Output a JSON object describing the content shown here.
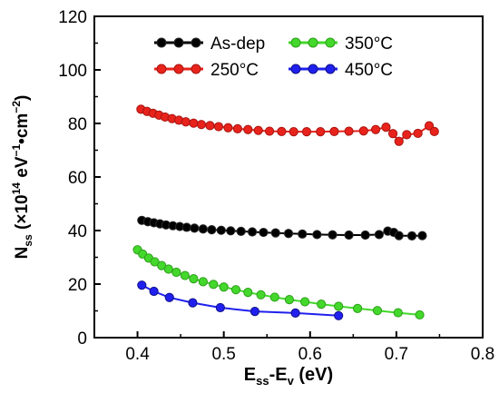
{
  "chart_data": {
    "type": "line",
    "xlabel": {
      "main": "E",
      "sub1": "ss",
      "mid": "-E",
      "sub2": "v",
      "tail": " (eV)"
    },
    "ylabel": {
      "main": "N",
      "sub1": "ss",
      "open": " (×10",
      "sup1": "14",
      "unit1": " eV",
      "sup2": "−1",
      "unit2": "•cm",
      "sup3": "−2",
      "close": ")"
    },
    "xlim": [
      0.35,
      0.8
    ],
    "ylim": [
      0,
      120
    ],
    "xticks": [
      "0.4",
      "0.5",
      "0.6",
      "0.7",
      "0.8"
    ],
    "xtick_values": [
      0.4,
      0.5,
      0.6,
      0.7,
      0.8
    ],
    "yticks": [
      "0",
      "20",
      "40",
      "60",
      "80",
      "100",
      "120"
    ],
    "ytick_values": [
      0,
      20,
      40,
      60,
      80,
      100,
      120
    ],
    "legend": "top, inside plot, two columns",
    "series": [
      {
        "name": "As-dep",
        "color": "#000000",
        "x": [
          0.405,
          0.412,
          0.419,
          0.426,
          0.433,
          0.441,
          0.449,
          0.457,
          0.466,
          0.476,
          0.486,
          0.497,
          0.508,
          0.52,
          0.533,
          0.546,
          0.56,
          0.575,
          0.591,
          0.608,
          0.626,
          0.645,
          0.664,
          0.68,
          0.69,
          0.697,
          0.703,
          0.718,
          0.73
        ],
        "y": [
          43.8,
          43.3,
          42.9,
          42.5,
          42.1,
          41.8,
          41.5,
          41.2,
          40.9,
          40.6,
          40.3,
          40.1,
          39.9,
          39.7,
          39.5,
          39.3,
          39.1,
          38.9,
          38.7,
          38.5,
          38.4,
          38.3,
          38.3,
          38.5,
          39.8,
          39.3,
          38.1,
          38.0,
          38.1
        ]
      },
      {
        "name": "250°C",
        "color": "#e8231c",
        "x": [
          0.404,
          0.411,
          0.418,
          0.425,
          0.432,
          0.44,
          0.448,
          0.456,
          0.465,
          0.474,
          0.484,
          0.494,
          0.505,
          0.516,
          0.528,
          0.54,
          0.553,
          0.567,
          0.581,
          0.596,
          0.612,
          0.628,
          0.645,
          0.662,
          0.676,
          0.688,
          0.696,
          0.703,
          0.712,
          0.725,
          0.738,
          0.744
        ],
        "y": [
          85.3,
          84.5,
          83.8,
          83.1,
          82.4,
          81.8,
          81.2,
          80.6,
          80.1,
          79.6,
          79.2,
          78.8,
          78.4,
          78.0,
          77.7,
          77.4,
          77.1,
          77.0,
          76.9,
          76.9,
          76.9,
          77.0,
          77.1,
          77.2,
          77.7,
          78.6,
          76.2,
          73.3,
          75.8,
          76.3,
          79.1,
          77.0
        ]
      },
      {
        "name": "350°C",
        "color": "#43d82b",
        "x": [
          0.4,
          0.406,
          0.413,
          0.42,
          0.428,
          0.436,
          0.445,
          0.455,
          0.465,
          0.476,
          0.488,
          0.5,
          0.514,
          0.528,
          0.543,
          0.559,
          0.576,
          0.594,
          0.613,
          0.633,
          0.655,
          0.678,
          0.702,
          0.727
        ],
        "y": [
          32.8,
          31.2,
          29.7,
          28.3,
          26.9,
          25.6,
          24.4,
          23.2,
          22.0,
          20.9,
          19.9,
          18.9,
          17.9,
          16.9,
          16.0,
          15.1,
          14.2,
          13.4,
          12.5,
          11.7,
          10.9,
          10.1,
          9.3,
          8.5
        ]
      },
      {
        "name": "450°C",
        "color": "#2020ee",
        "x": [
          0.405,
          0.419,
          0.437,
          0.464,
          0.496,
          0.536,
          0.583,
          0.633
        ],
        "y": [
          19.6,
          17.3,
          15.0,
          13.0,
          11.2,
          9.8,
          9.2,
          8.2
        ]
      }
    ]
  }
}
